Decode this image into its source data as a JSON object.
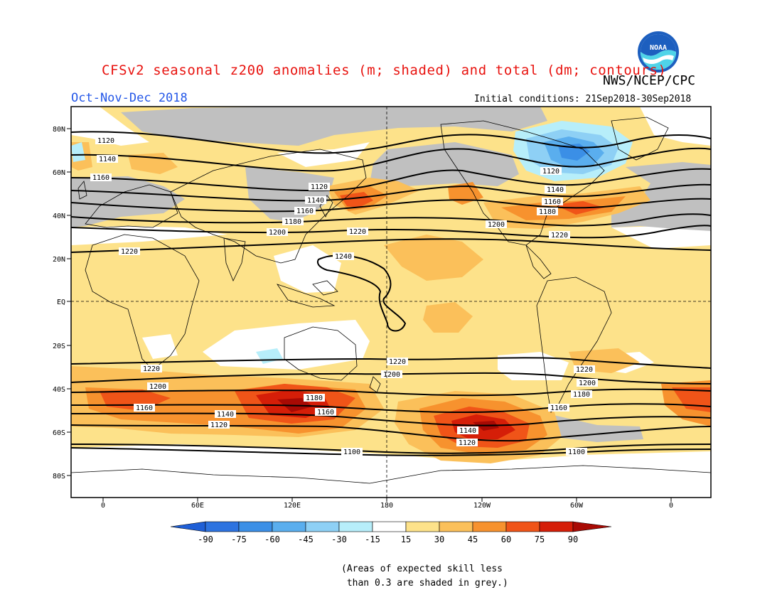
{
  "header": {
    "title": "CFSv2 seasonal z200 anomalies (m; shaded) and total (dm; contours)",
    "agency": "NWS/NCEP/CPC",
    "season": "Oct-Nov-Dec 2018",
    "initial_conditions": "Initial conditions: 21Sep2018-30Sep2018",
    "logo_text": "NOAA"
  },
  "map": {
    "lat_labels": [
      "80N",
      "60N",
      "40N",
      "20N",
      "EQ",
      "20S",
      "40S",
      "60S",
      "80S"
    ],
    "lon_labels": [
      "0",
      "60E",
      "120E",
      "180",
      "120W",
      "60W",
      "0"
    ],
    "contour_labels": [
      "1100",
      "1120",
      "1140",
      "1160",
      "1180",
      "1200",
      "1220",
      "1240"
    ],
    "colors": {
      "grey_skill": "#c0c0c0",
      "pos_15_30": "#fde28a",
      "pos_30_45": "#fbc05a",
      "pos_45_60": "#f7922e",
      "pos_60_75": "#f05418",
      "pos_75_90": "#d51e08",
      "pos_gt_90": "#a80a04",
      "neg_15_30": "#b7eefa",
      "neg_30_45": "#8ed0f5",
      "neg_45_60": "#5aaeee",
      "neg_60_75": "#3b8fe6",
      "neg_75_90": "#2a6fd8"
    }
  },
  "colorbar": {
    "ticks": [
      "-90",
      "-75",
      "-60",
      "-45",
      "-30",
      "-15",
      "15",
      "30",
      "45",
      "60",
      "75",
      "90"
    ],
    "colors": [
      "#1f5fd6",
      "#2d73e0",
      "#3b8fe6",
      "#5aaeee",
      "#8ed0f5",
      "#b7eefa",
      "#ffffff",
      "#fde28a",
      "#fbc05a",
      "#f7922e",
      "#f05418",
      "#d51e08",
      "#a80a04"
    ]
  },
  "footnote": "(Areas of expected skill less\n than 0.3 are shaded in grey.)"
}
